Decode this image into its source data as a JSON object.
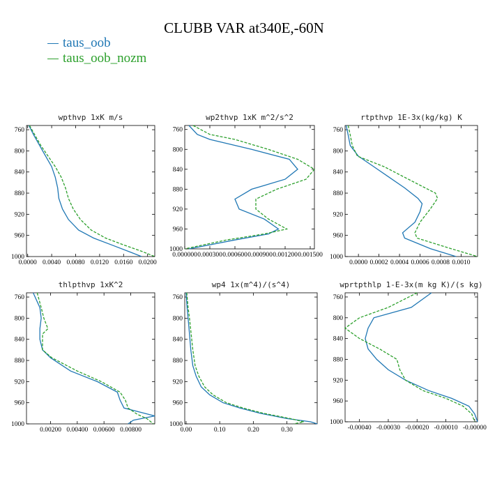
{
  "title": "CLUBB VAR at340E,-60N",
  "legend": [
    {
      "name": "taus_oob",
      "color": "#1f77b4"
    },
    {
      "name": "taus_oob_nozm",
      "color": "#2ca02c"
    }
  ],
  "chart_data": [
    {
      "type": "line",
      "title": "wpthvp   1xK m/s",
      "xlim": [
        -0.0002,
        0.0212
      ],
      "xticks": [
        0.0,
        0.004,
        0.008,
        0.012,
        0.016,
        0.02
      ],
      "xtick_labels": [
        "0.0000",
        "0.0040",
        "0.0080",
        "0.0120",
        "0.0160",
        "0.0200"
      ],
      "ylim": [
        752,
        1000
      ],
      "yticks": [
        760,
        800,
        840,
        880,
        920,
        960,
        1000
      ],
      "series": [
        {
          "name": "taus_oob",
          "color": "#1f77b4",
          "dash": "",
          "x": [
            0.0002,
            0.001,
            0.002,
            0.003,
            0.004,
            0.0046,
            0.005,
            0.0052,
            0.0058,
            0.0068,
            0.0085,
            0.011,
            0.014,
            0.0172,
            0.019
          ],
          "y": [
            752,
            770,
            790,
            810,
            830,
            850,
            870,
            890,
            910,
            930,
            950,
            965,
            978,
            992,
            1000
          ]
        },
        {
          "name": "taus_oob_nozm",
          "color": "#2ca02c",
          "dash": "4,2",
          "x": [
            0.0003,
            0.0012,
            0.0022,
            0.0034,
            0.0046,
            0.0056,
            0.0063,
            0.0068,
            0.0076,
            0.0088,
            0.0106,
            0.013,
            0.016,
            0.019,
            0.0212
          ],
          "y": [
            752,
            770,
            790,
            810,
            830,
            850,
            870,
            890,
            910,
            930,
            950,
            965,
            978,
            990,
            1000
          ]
        }
      ]
    },
    {
      "type": "line",
      "title": "wp2thvp   1xK m^2/s^2",
      "xlim": [
        0.0,
        0.00155
      ],
      "xticks": [
        0.0,
        0.0003,
        0.0006,
        0.0009,
        0.0012,
        0.0015
      ],
      "xtick_labels": [
        "0.000000",
        "0.000300",
        "0.000600",
        "0.000900",
        "0.001200",
        "0.001500"
      ],
      "ylim": [
        752,
        1000
      ],
      "yticks": [
        760,
        800,
        840,
        880,
        920,
        960,
        1000
      ],
      "series": [
        {
          "name": "taus_oob",
          "color": "#1f77b4",
          "dash": "",
          "x": [
            5e-05,
            0.00015,
            0.0003,
            0.0008,
            0.00125,
            0.00135,
            0.0012,
            0.0008,
            0.0006,
            0.00065,
            0.00095,
            0.00112,
            0.001,
            0.0006,
            5e-05
          ],
          "y": [
            752,
            770,
            780,
            800,
            820,
            840,
            860,
            880,
            900,
            920,
            940,
            960,
            970,
            982,
            1000
          ]
        },
        {
          "name": "taus_oob_nozm",
          "color": "#2ca02c",
          "dash": "4,2",
          "x": [
            0.0001,
            0.0003,
            0.0006,
            0.001,
            0.00135,
            0.00155,
            0.00145,
            0.0011,
            0.00085,
            0.00085,
            0.001,
            0.00122,
            0.00095,
            0.0005,
            0.0
          ],
          "y": [
            752,
            770,
            780,
            800,
            820,
            840,
            860,
            880,
            900,
            920,
            940,
            960,
            970,
            982,
            1000
          ]
        }
      ]
    },
    {
      "type": "line",
      "title": "rtpthvp   1E-3x(kg/kg) K",
      "xlim": [
        -0.00013,
        0.00116
      ],
      "xticks": [
        0.0,
        0.0002,
        0.0004,
        0.0006,
        0.0008,
        0.001
      ],
      "xtick_labels": [
        "0.0000",
        "0.0002",
        "0.0004",
        "0.0006",
        "0.0008",
        "0.0010"
      ],
      "ylim": [
        752,
        1000
      ],
      "yticks": [
        760,
        800,
        840,
        880,
        920,
        960,
        1000
      ],
      "series": [
        {
          "name": "taus_oob",
          "color": "#1f77b4",
          "dash": "",
          "x": [
            -0.00012,
            -0.0001,
            -8e-05,
            0.0,
            0.00015,
            0.0003,
            0.00045,
            0.00058,
            0.00062,
            0.0006,
            0.00055,
            0.00043,
            0.00045,
            0.0007,
            0.00095
          ],
          "y": [
            752,
            770,
            790,
            810,
            830,
            850,
            870,
            890,
            900,
            915,
            935,
            955,
            965,
            985,
            1000
          ]
        },
        {
          "name": "taus_oob_nozm",
          "color": "#2ca02c",
          "dash": "4,2",
          "x": [
            -0.0001,
            -8e-05,
            -6e-05,
            -1e-05,
            0.00025,
            0.00045,
            0.00065,
            0.00075,
            0.00077,
            0.0007,
            0.0006,
            0.00055,
            0.00057,
            0.0009,
            0.00116
          ],
          "y": [
            752,
            770,
            790,
            810,
            830,
            850,
            870,
            880,
            890,
            910,
            935,
            955,
            965,
            985,
            1000
          ]
        }
      ]
    },
    {
      "type": "line",
      "title": "thlpthvp   1xK^2",
      "xlim": [
        0.0002,
        0.0098
      ],
      "xticks": [
        0.002,
        0.004,
        0.006,
        0.008
      ],
      "xtick_labels": [
        "0.00200",
        "0.00400",
        "0.00600",
        "0.00800"
      ],
      "ylim": [
        752,
        1000
      ],
      "yticks": [
        760,
        800,
        840,
        880,
        920,
        960,
        1000
      ],
      "series": [
        {
          "name": "taus_oob",
          "color": "#1f77b4",
          "dash": "",
          "x": [
            0.0007,
            0.0012,
            0.0013,
            0.0012,
            0.0012,
            0.0014,
            0.002,
            0.0035,
            0.0055,
            0.007,
            0.0072,
            0.0075,
            0.0098,
            0.0082,
            0.0078
          ],
          "y": [
            752,
            780,
            800,
            820,
            840,
            860,
            875,
            900,
            920,
            940,
            955,
            970,
            985,
            993,
            1000
          ]
        },
        {
          "name": "taus_oob_nozm",
          "color": "#2ca02c",
          "dash": "4,2",
          "x": [
            0.001,
            0.0013,
            0.0015,
            0.0018,
            0.0014,
            0.0014,
            0.0021,
            0.004,
            0.0058,
            0.0072,
            0.0076,
            0.0078,
            0.0085,
            0.0092,
            0.0097
          ],
          "y": [
            752,
            780,
            800,
            820,
            830,
            860,
            875,
            900,
            920,
            940,
            955,
            970,
            982,
            990,
            1000
          ]
        }
      ]
    },
    {
      "type": "line",
      "title": "wp4   1x(m^4)/(s^4)",
      "xlim": [
        -0.004,
        0.39
      ],
      "xticks": [
        0.0,
        0.1,
        0.2,
        0.3
      ],
      "xtick_labels": [
        "0.00",
        "0.10",
        "0.20",
        "0.30"
      ],
      "ylim": [
        752,
        1000
      ],
      "yticks": [
        760,
        800,
        840,
        880,
        920,
        960,
        1000
      ],
      "series": [
        {
          "name": "taus_oob",
          "color": "#1f77b4",
          "dash": "",
          "x": [
            0.0,
            0.003,
            0.006,
            0.01,
            0.014,
            0.02,
            0.03,
            0.045,
            0.07,
            0.11,
            0.16,
            0.22,
            0.3,
            0.37,
            0.39
          ],
          "y": [
            752,
            780,
            800,
            830,
            860,
            890,
            910,
            930,
            945,
            960,
            970,
            980,
            990,
            996,
            1000
          ]
        },
        {
          "name": "taus_oob_nozm",
          "color": "#2ca02c",
          "dash": "4,2",
          "x": [
            0.002,
            0.006,
            0.01,
            0.015,
            0.02,
            0.027,
            0.038,
            0.055,
            0.08,
            0.12,
            0.17,
            0.23,
            0.31,
            0.35,
            0.32
          ],
          "y": [
            752,
            780,
            800,
            830,
            860,
            890,
            910,
            930,
            945,
            960,
            970,
            980,
            990,
            996,
            1000
          ]
        }
      ]
    },
    {
      "type": "line",
      "title": "wprtpthlp   1-E-3x(m kg K)/(s kg)",
      "xlim": [
        -0.00045,
        1e-05
      ],
      "xticks": [
        -0.0004,
        -0.0003,
        -0.0002,
        -0.0001,
        0.0
      ],
      "xtick_labels": [
        "-0.00040",
        "-0.00030",
        "-0.00020",
        "-0.00010",
        "-0.00000"
      ],
      "ylim": [
        752,
        1000
      ],
      "yticks": [
        760,
        800,
        840,
        880,
        920,
        960,
        1000
      ],
      "series": [
        {
          "name": "taus_oob",
          "color": "#1f77b4",
          "dash": "",
          "x": [
            -0.00015,
            -0.00022,
            -0.00035,
            -0.00037,
            -0.00038,
            -0.00037,
            -0.00034,
            -0.0003,
            -0.00024,
            -0.00016,
            -8e-05,
            -2e-05,
            0.0,
            1e-05
          ],
          "y": [
            752,
            780,
            800,
            820,
            840,
            860,
            880,
            900,
            920,
            940,
            955,
            970,
            985,
            1000
          ]
        },
        {
          "name": "taus_oob_nozm",
          "color": "#2ca02c",
          "dash": "4,2",
          "x": [
            -0.0002,
            -0.0003,
            -0.0004,
            -0.00045,
            -0.0004,
            -0.00033,
            -0.00027,
            -0.00026,
            -0.00024,
            -0.00018,
            -0.0001,
            -4e-05,
            -1e-05,
            0.0
          ],
          "y": [
            752,
            780,
            800,
            820,
            840,
            860,
            880,
            900,
            920,
            940,
            955,
            970,
            985,
            1000
          ]
        }
      ]
    }
  ]
}
